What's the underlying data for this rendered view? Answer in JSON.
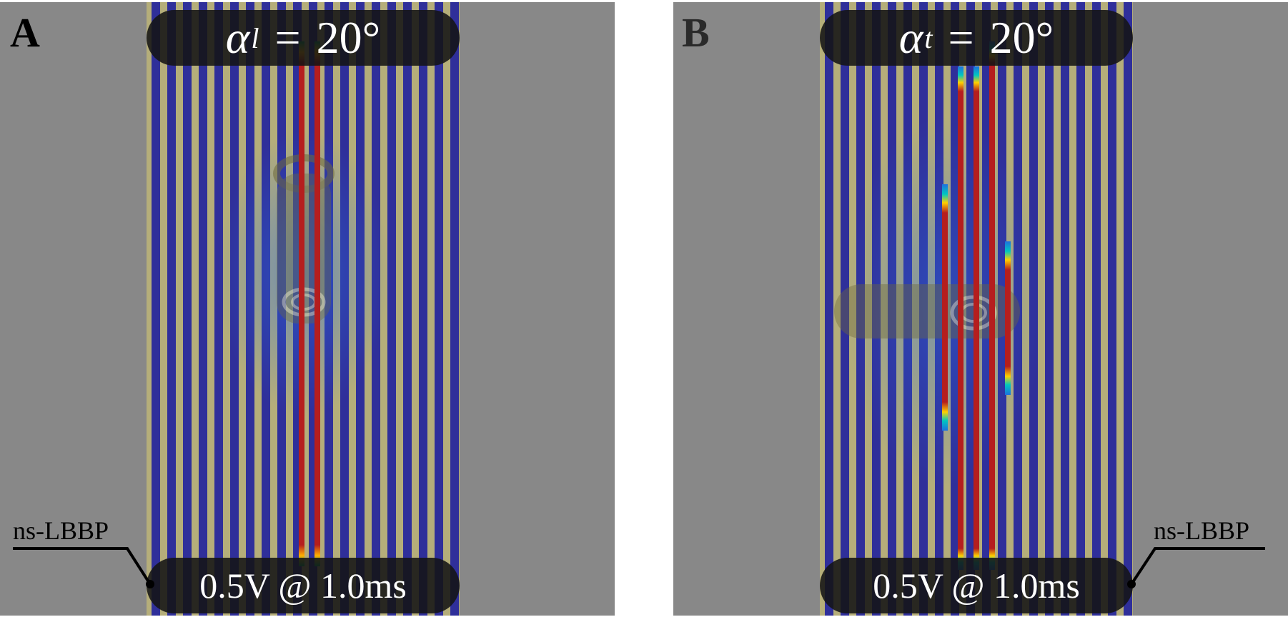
{
  "panels": [
    {
      "id": "A",
      "letter": "A",
      "angle": {
        "symbol": "α",
        "subscript": "l",
        "equals": "=",
        "value": "20°"
      },
      "stimulus": "0.5V @ 1.0ms",
      "callout": "ns-LBBP",
      "colors": {
        "background": "#888888",
        "fiber": "#2f2f9a",
        "interstitium": "#b5ae7a",
        "activation": "#b51e1e"
      }
    },
    {
      "id": "B",
      "letter": "B",
      "angle": {
        "symbol": "α",
        "subscript": "t",
        "equals": "=",
        "value": "20°"
      },
      "stimulus": "0.5V @ 1.0ms",
      "callout": "ns-LBBP",
      "colors": {
        "background": "#888888",
        "fiber": "#2f2f9a",
        "interstitium": "#b5ae7a",
        "activation": "#b51e1e"
      }
    }
  ]
}
